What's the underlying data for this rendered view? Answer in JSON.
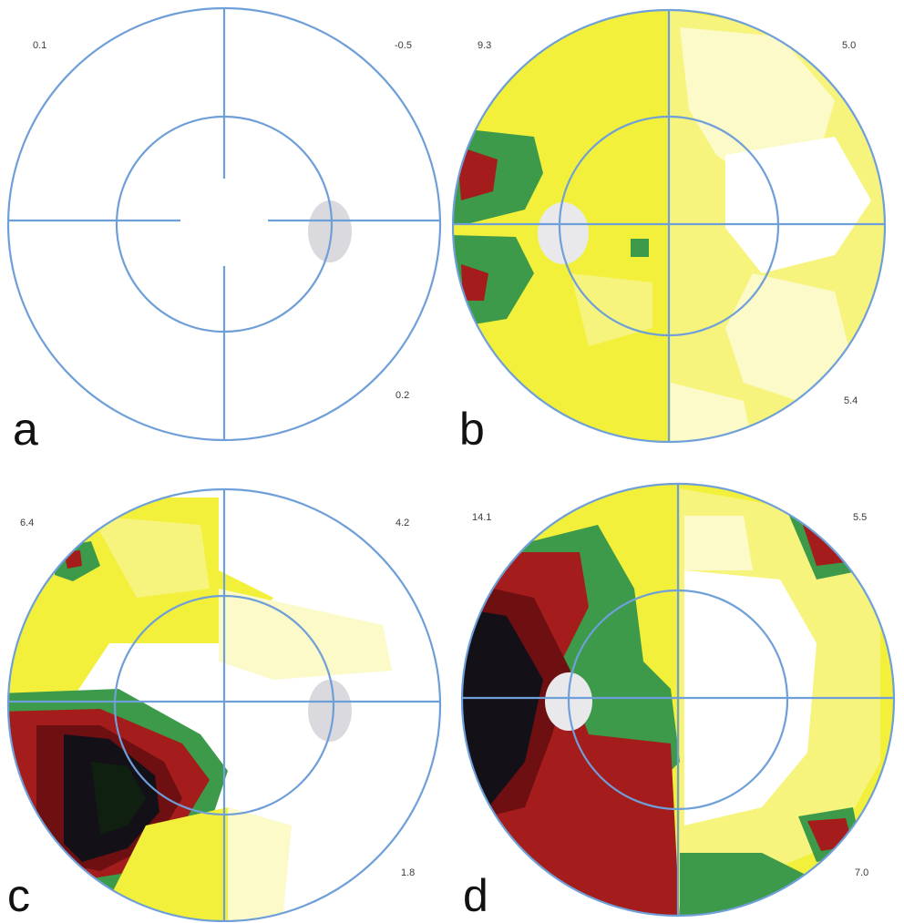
{
  "colors": {
    "ring": "#6f9fd8",
    "white": "#ffffff",
    "paleYellow": "#fbfac8",
    "yellow": "#f2f03a",
    "lightYellow": "#f7f47e",
    "green": "#3c9a4a",
    "red": "#a51c1c",
    "darkRed": "#6e0f12",
    "black": "#141018",
    "blindSpot": "#d7d7dc"
  },
  "panels": [
    {
      "id": "a",
      "letter": "a",
      "values": {
        "upperLeft": "0.1",
        "upperRight": "-0.5",
        "lowerRight": "0.2"
      }
    },
    {
      "id": "b",
      "letter": "b",
      "values": {
        "upperLeft": "9.3",
        "upperRight": "5.0",
        "lowerRight": "5.4"
      }
    },
    {
      "id": "c",
      "letter": "c",
      "values": {
        "upperLeft": "6.4",
        "upperRight": "4.2",
        "lowerRight": "1.8"
      }
    },
    {
      "id": "d",
      "letter": "d",
      "values": {
        "upperLeft": "14.1",
        "upperRight": "5.5",
        "lowerRight": "7.0"
      }
    }
  ]
}
